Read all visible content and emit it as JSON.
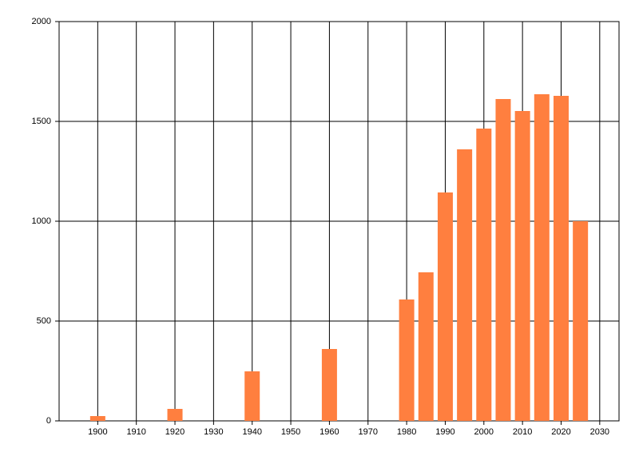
{
  "chart_data": {
    "type": "bar",
    "x": [
      1900,
      1920,
      1940,
      1960,
      1980,
      1985,
      1990,
      1995,
      2000,
      2005,
      2010,
      2015,
      2020,
      2025
    ],
    "values": [
      24,
      60,
      248,
      360,
      608,
      744,
      1144,
      1360,
      1464,
      1612,
      1552,
      1636,
      1628,
      1000
    ],
    "color": "#ff7f3f",
    "xlim": [
      1890,
      2035
    ],
    "xticks": [
      1900,
      1910,
      1920,
      1930,
      1940,
      1950,
      1960,
      1970,
      1980,
      1990,
      2000,
      2010,
      2020,
      2030
    ],
    "ylim": [
      0,
      2000
    ],
    "yticks": [
      0,
      500,
      1000,
      1500,
      2000
    ],
    "grid": true
  }
}
